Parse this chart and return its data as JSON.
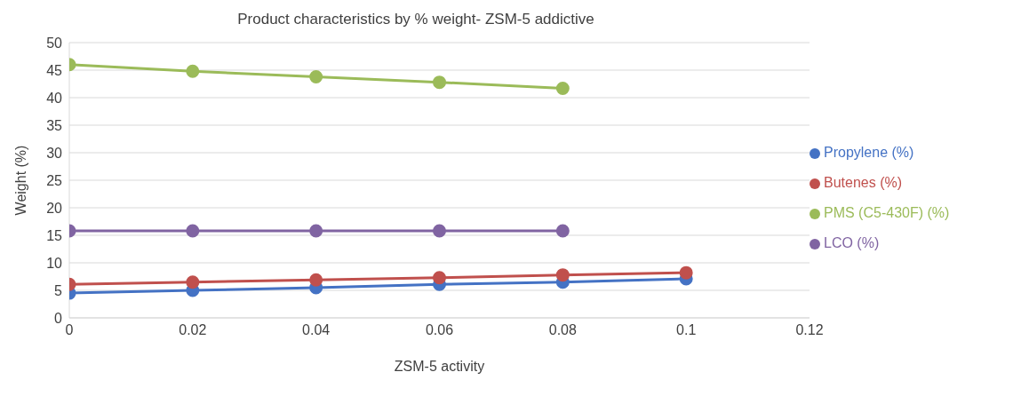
{
  "chart_data": {
    "type": "line",
    "title": "Product characteristics by % weight- ZSM-5  addictive",
    "xlabel": "ZSM-5 activity",
    "ylabel": "Weight (%)",
    "x": [
      0,
      0.02,
      0.04,
      0.06,
      0.08,
      0.1
    ],
    "series": [
      {
        "name": "Propylene (%)",
        "color": "#4472c4",
        "values": [
          4.5,
          5.0,
          5.5,
          6.1,
          6.5,
          7.1
        ]
      },
      {
        "name": "Butenes (%)",
        "color": "#c0504d",
        "values": [
          6.1,
          6.5,
          6.9,
          7.3,
          7.8,
          8.2
        ]
      },
      {
        "name": "PMS (C5-430F) (%)",
        "color": "#9bbb59",
        "values": [
          46.0,
          44.8,
          43.8,
          42.8,
          41.7,
          null
        ]
      },
      {
        "name": "LCO (%)",
        "color": "#8064a2",
        "values": [
          15.8,
          15.8,
          15.8,
          15.8,
          15.8,
          null
        ]
      }
    ],
    "xlim": [
      0,
      0.12
    ],
    "xticks": [
      0,
      0.02,
      0.04,
      0.06,
      0.08,
      0.1,
      0.12
    ],
    "ylim": [
      0,
      50
    ],
    "yticks": [
      0,
      5,
      10,
      15,
      20,
      25,
      30,
      35,
      40,
      45,
      50
    ],
    "grid": "y",
    "legend": "right",
    "marker": "circle",
    "line_style": "solid"
  }
}
